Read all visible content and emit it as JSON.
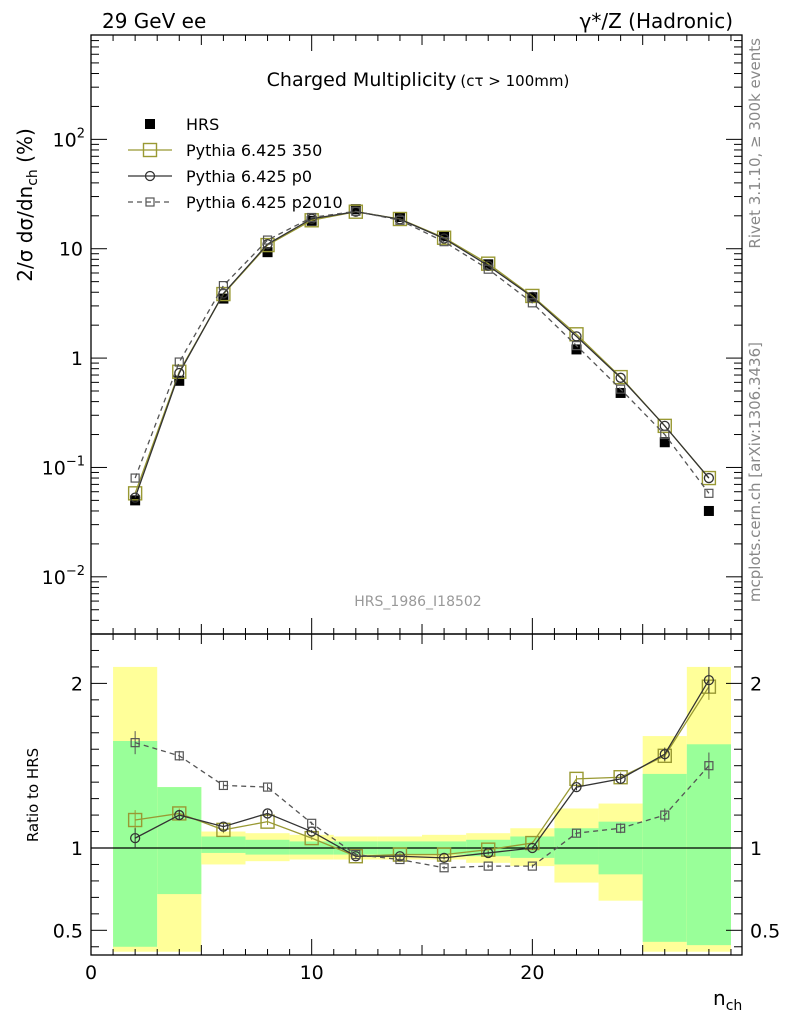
{
  "header": {
    "left": "29 GeV ee",
    "right": "γ*/Z (Hadronic)"
  },
  "side_labels": {
    "rivet": "Rivet 3.1.10, ≥ 300k events",
    "mcplots": "mcplots.cern.ch [arXiv:1306.3436]"
  },
  "chart_data": [
    {
      "type": "scatter",
      "title": "Charged Multiplicity",
      "title_suffix": "(cτ > 100mm)",
      "watermark": "HRS_1986_I18502",
      "ylabel": "2/σ dσ/dn_ch (%)",
      "yscale": "log",
      "ylim": [
        0.003,
        900
      ],
      "xlim": [
        0,
        29.5
      ],
      "yticks": [
        {
          "value": 0.01,
          "label": "10",
          "exp": "−2"
        },
        {
          "value": 0.1,
          "label": "10",
          "exp": "−1"
        },
        {
          "value": 1,
          "label": "1",
          "exp": ""
        },
        {
          "value": 10,
          "label": "10",
          "exp": ""
        },
        {
          "value": 100,
          "label": "10",
          "exp": "2"
        }
      ],
      "legend_position": "top-left",
      "x": [
        2,
        4,
        6,
        8,
        10,
        12,
        14,
        16,
        18,
        20,
        22,
        24,
        26,
        28
      ],
      "series": [
        {
          "name": "HRS",
          "color": "#000000",
          "style": "filled-square",
          "values": [
            0.05,
            0.62,
            3.5,
            9.3,
            18.0,
            23.0,
            19.5,
            13.0,
            7.2,
            3.6,
            1.2,
            0.48,
            0.17,
            0.04
          ]
        },
        {
          "name": "Pythia 6.425 350",
          "color": "#999933",
          "style": "open-square-solid",
          "values": [
            0.058,
            0.75,
            3.85,
            10.8,
            18.2,
            21.8,
            18.7,
            12.6,
            7.3,
            3.7,
            1.65,
            0.67,
            0.24,
            0.08
          ]
        },
        {
          "name": "Pythia 6.425 p0",
          "color": "#333333",
          "style": "open-circle-solid",
          "values": [
            0.053,
            0.73,
            3.9,
            11.0,
            18.8,
            21.8,
            18.6,
            12.4,
            7.0,
            3.63,
            1.58,
            0.66,
            0.24,
            0.08
          ]
        },
        {
          "name": "Pythia 6.425 p2010",
          "color": "#555555",
          "style": "open-square-dashed",
          "values": [
            0.08,
            0.92,
            4.6,
            12.0,
            19.3,
            22.0,
            18.2,
            11.6,
            6.5,
            3.2,
            1.3,
            0.52,
            0.2,
            0.058
          ]
        }
      ]
    },
    {
      "type": "scatter",
      "ylabel": "Ratio to HRS",
      "xlabel": "n_ch",
      "ylim": [
        0.35,
        2.3
      ],
      "xlim": [
        0,
        29.5
      ],
      "xticks": [
        0,
        10,
        20
      ],
      "yticks": [
        {
          "value": 0.5,
          "label": "0.5"
        },
        {
          "value": 1,
          "label": "1"
        },
        {
          "value": 2,
          "label": "2"
        }
      ],
      "bands": [
        {
          "x0": 1,
          "x1": 3,
          "yellow": [
            0.37,
            2.1
          ],
          "green": [
            0.4,
            1.65
          ]
        },
        {
          "x0": 3,
          "x1": 5,
          "yellow": [
            0.37,
            1.37
          ],
          "green": [
            0.72,
            1.37
          ]
        },
        {
          "x0": 5,
          "x1": 7,
          "yellow": [
            0.9,
            1.1
          ],
          "green": [
            0.97,
            1.07
          ]
        },
        {
          "x0": 7,
          "x1": 9,
          "yellow": [
            0.92,
            1.09
          ],
          "green": [
            0.96,
            1.05
          ]
        },
        {
          "x0": 9,
          "x1": 11,
          "yellow": [
            0.93,
            1.08
          ],
          "green": [
            0.96,
            1.04
          ]
        },
        {
          "x0": 11,
          "x1": 13,
          "yellow": [
            0.93,
            1.07
          ],
          "green": [
            0.96,
            1.04
          ]
        },
        {
          "x0": 13,
          "x1": 15,
          "yellow": [
            0.93,
            1.07
          ],
          "green": [
            0.96,
            1.04
          ]
        },
        {
          "x0": 15,
          "x1": 17,
          "yellow": [
            0.93,
            1.08
          ],
          "green": [
            0.96,
            1.04
          ]
        },
        {
          "x0": 17,
          "x1": 19,
          "yellow": [
            0.91,
            1.09
          ],
          "green": [
            0.95,
            1.05
          ]
        },
        {
          "x0": 19,
          "x1": 21,
          "yellow": [
            0.89,
            1.12
          ],
          "green": [
            0.94,
            1.07
          ]
        },
        {
          "x0": 21,
          "x1": 23,
          "yellow": [
            0.79,
            1.24
          ],
          "green": [
            0.9,
            1.12
          ]
        },
        {
          "x0": 23,
          "x1": 25,
          "yellow": [
            0.68,
            1.27
          ],
          "green": [
            0.84,
            1.16
          ]
        },
        {
          "x0": 25,
          "x1": 27,
          "yellow": [
            0.37,
            1.68
          ],
          "green": [
            0.43,
            1.45
          ]
        },
        {
          "x0": 27,
          "x1": 29,
          "yellow": [
            0.37,
            2.1
          ],
          "green": [
            0.41,
            1.63
          ]
        }
      ],
      "x": [
        2,
        4,
        6,
        8,
        10,
        12,
        14,
        16,
        18,
        20,
        22,
        24,
        26,
        28
      ],
      "series": [
        {
          "name": "Pythia 6.425 350",
          "color": "#999933",
          "style": "open-square-solid",
          "values": [
            1.17,
            1.21,
            1.11,
            1.16,
            1.06,
            0.95,
            0.96,
            0.96,
            0.99,
            1.03,
            1.42,
            1.43,
            1.56,
            1.98
          ],
          "err": [
            0.06,
            0.03,
            0.02,
            0.02,
            0.01,
            0.01,
            0.01,
            0.01,
            0.01,
            0.01,
            0.02,
            0.03,
            0.04,
            0.08
          ]
        },
        {
          "name": "Pythia 6.425 p0",
          "color": "#333333",
          "style": "open-circle-solid",
          "values": [
            1.06,
            1.2,
            1.13,
            1.21,
            1.1,
            0.95,
            0.95,
            0.94,
            0.97,
            1.0,
            1.37,
            1.42,
            1.57,
            2.02
          ],
          "err": [
            0.06,
            0.03,
            0.02,
            0.02,
            0.01,
            0.01,
            0.01,
            0.01,
            0.01,
            0.01,
            0.02,
            0.03,
            0.04,
            0.08
          ]
        },
        {
          "name": "Pythia 6.425 p2010",
          "color": "#555555",
          "style": "open-square-dashed",
          "values": [
            1.64,
            1.56,
            1.38,
            1.37,
            1.15,
            0.96,
            0.93,
            0.88,
            0.89,
            0.89,
            1.09,
            1.12,
            1.2,
            1.5
          ],
          "err": [
            0.07,
            0.03,
            0.02,
            0.02,
            0.01,
            0.01,
            0.01,
            0.01,
            0.01,
            0.01,
            0.02,
            0.03,
            0.04,
            0.08
          ]
        }
      ]
    }
  ]
}
